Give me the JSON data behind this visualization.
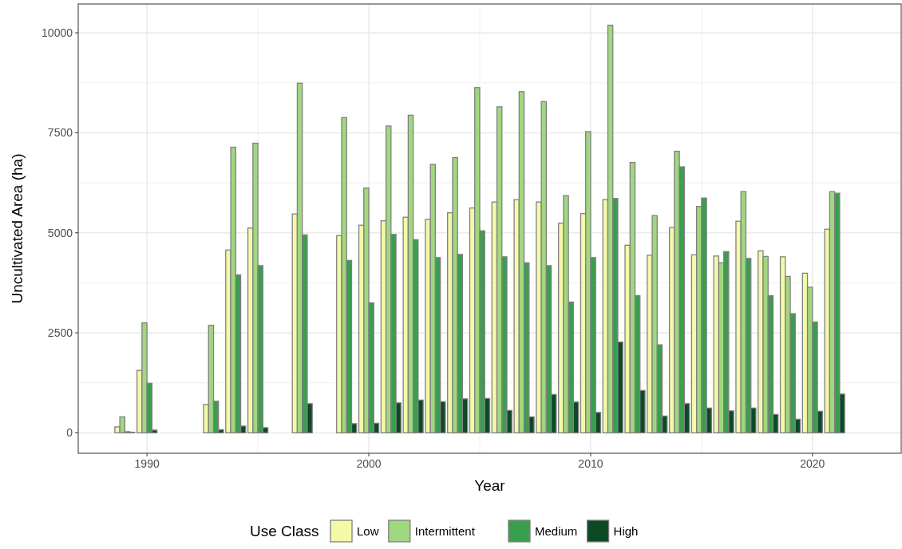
{
  "chart_data": {
    "type": "bar",
    "xlabel": "Year",
    "ylabel": "Uncultivated Area (ha)",
    "legend_title": "Use Class",
    "legend": "bottom",
    "grid": true,
    "x": [
      1989,
      1990,
      1993,
      1994,
      1995,
      1997,
      1999,
      2000,
      2001,
      2002,
      2003,
      2004,
      2005,
      2006,
      2007,
      2008,
      2009,
      2010,
      2011,
      2012,
      2013,
      2014,
      2015,
      2016,
      2017,
      2018,
      2019,
      2020,
      2021,
      2022
    ],
    "xlim": [
      1986.9,
      2024.0
    ],
    "xticks": [
      1990,
      2000,
      2010,
      2020
    ],
    "ylim": [
      -510,
      10720
    ],
    "yticks": [
      0,
      2500,
      5000,
      7500,
      10000
    ],
    "series": [
      {
        "name": "Low",
        "color": "#f4f9a8",
        "values": [
          150,
          1560,
          710,
          4570,
          5120,
          5470,
          4930,
          5190,
          5300,
          5390,
          5340,
          5500,
          5620,
          5770,
          5830,
          5770,
          5240,
          5480,
          5830,
          4690,
          4440,
          5130,
          4450,
          4420,
          5290,
          4550,
          4400,
          3990,
          5090,
          0
        ]
      },
      {
        "name": "Intermittent",
        "color": "#a1d77f",
        "values": [
          400,
          2750,
          2690,
          7140,
          7240,
          8740,
          7880,
          6120,
          7670,
          7940,
          6710,
          6880,
          8630,
          8150,
          8530,
          8280,
          5930,
          7530,
          10190,
          6760,
          5430,
          7040,
          5660,
          4250,
          6030,
          4410,
          3910,
          3640,
          6030,
          0
        ]
      },
      {
        "name": "Medium",
        "color": "#3a9e4f",
        "values": [
          30,
          1240,
          790,
          3950,
          4180,
          4950,
          4310,
          3250,
          4960,
          4830,
          4380,
          4460,
          5050,
          4400,
          4250,
          4180,
          3270,
          4380,
          5860,
          3430,
          2200,
          6650,
          5870,
          4530,
          4360,
          3430,
          2980,
          2770,
          5990,
          0
        ]
      },
      {
        "name": "High",
        "color": "#0c4a26",
        "values": [
          15,
          70,
          80,
          170,
          130,
          730,
          230,
          240,
          750,
          820,
          780,
          850,
          860,
          560,
          400,
          960,
          770,
          510,
          2270,
          1060,
          420,
          730,
          620,
          550,
          620,
          460,
          340,
          540,
          970,
          0
        ]
      }
    ]
  }
}
